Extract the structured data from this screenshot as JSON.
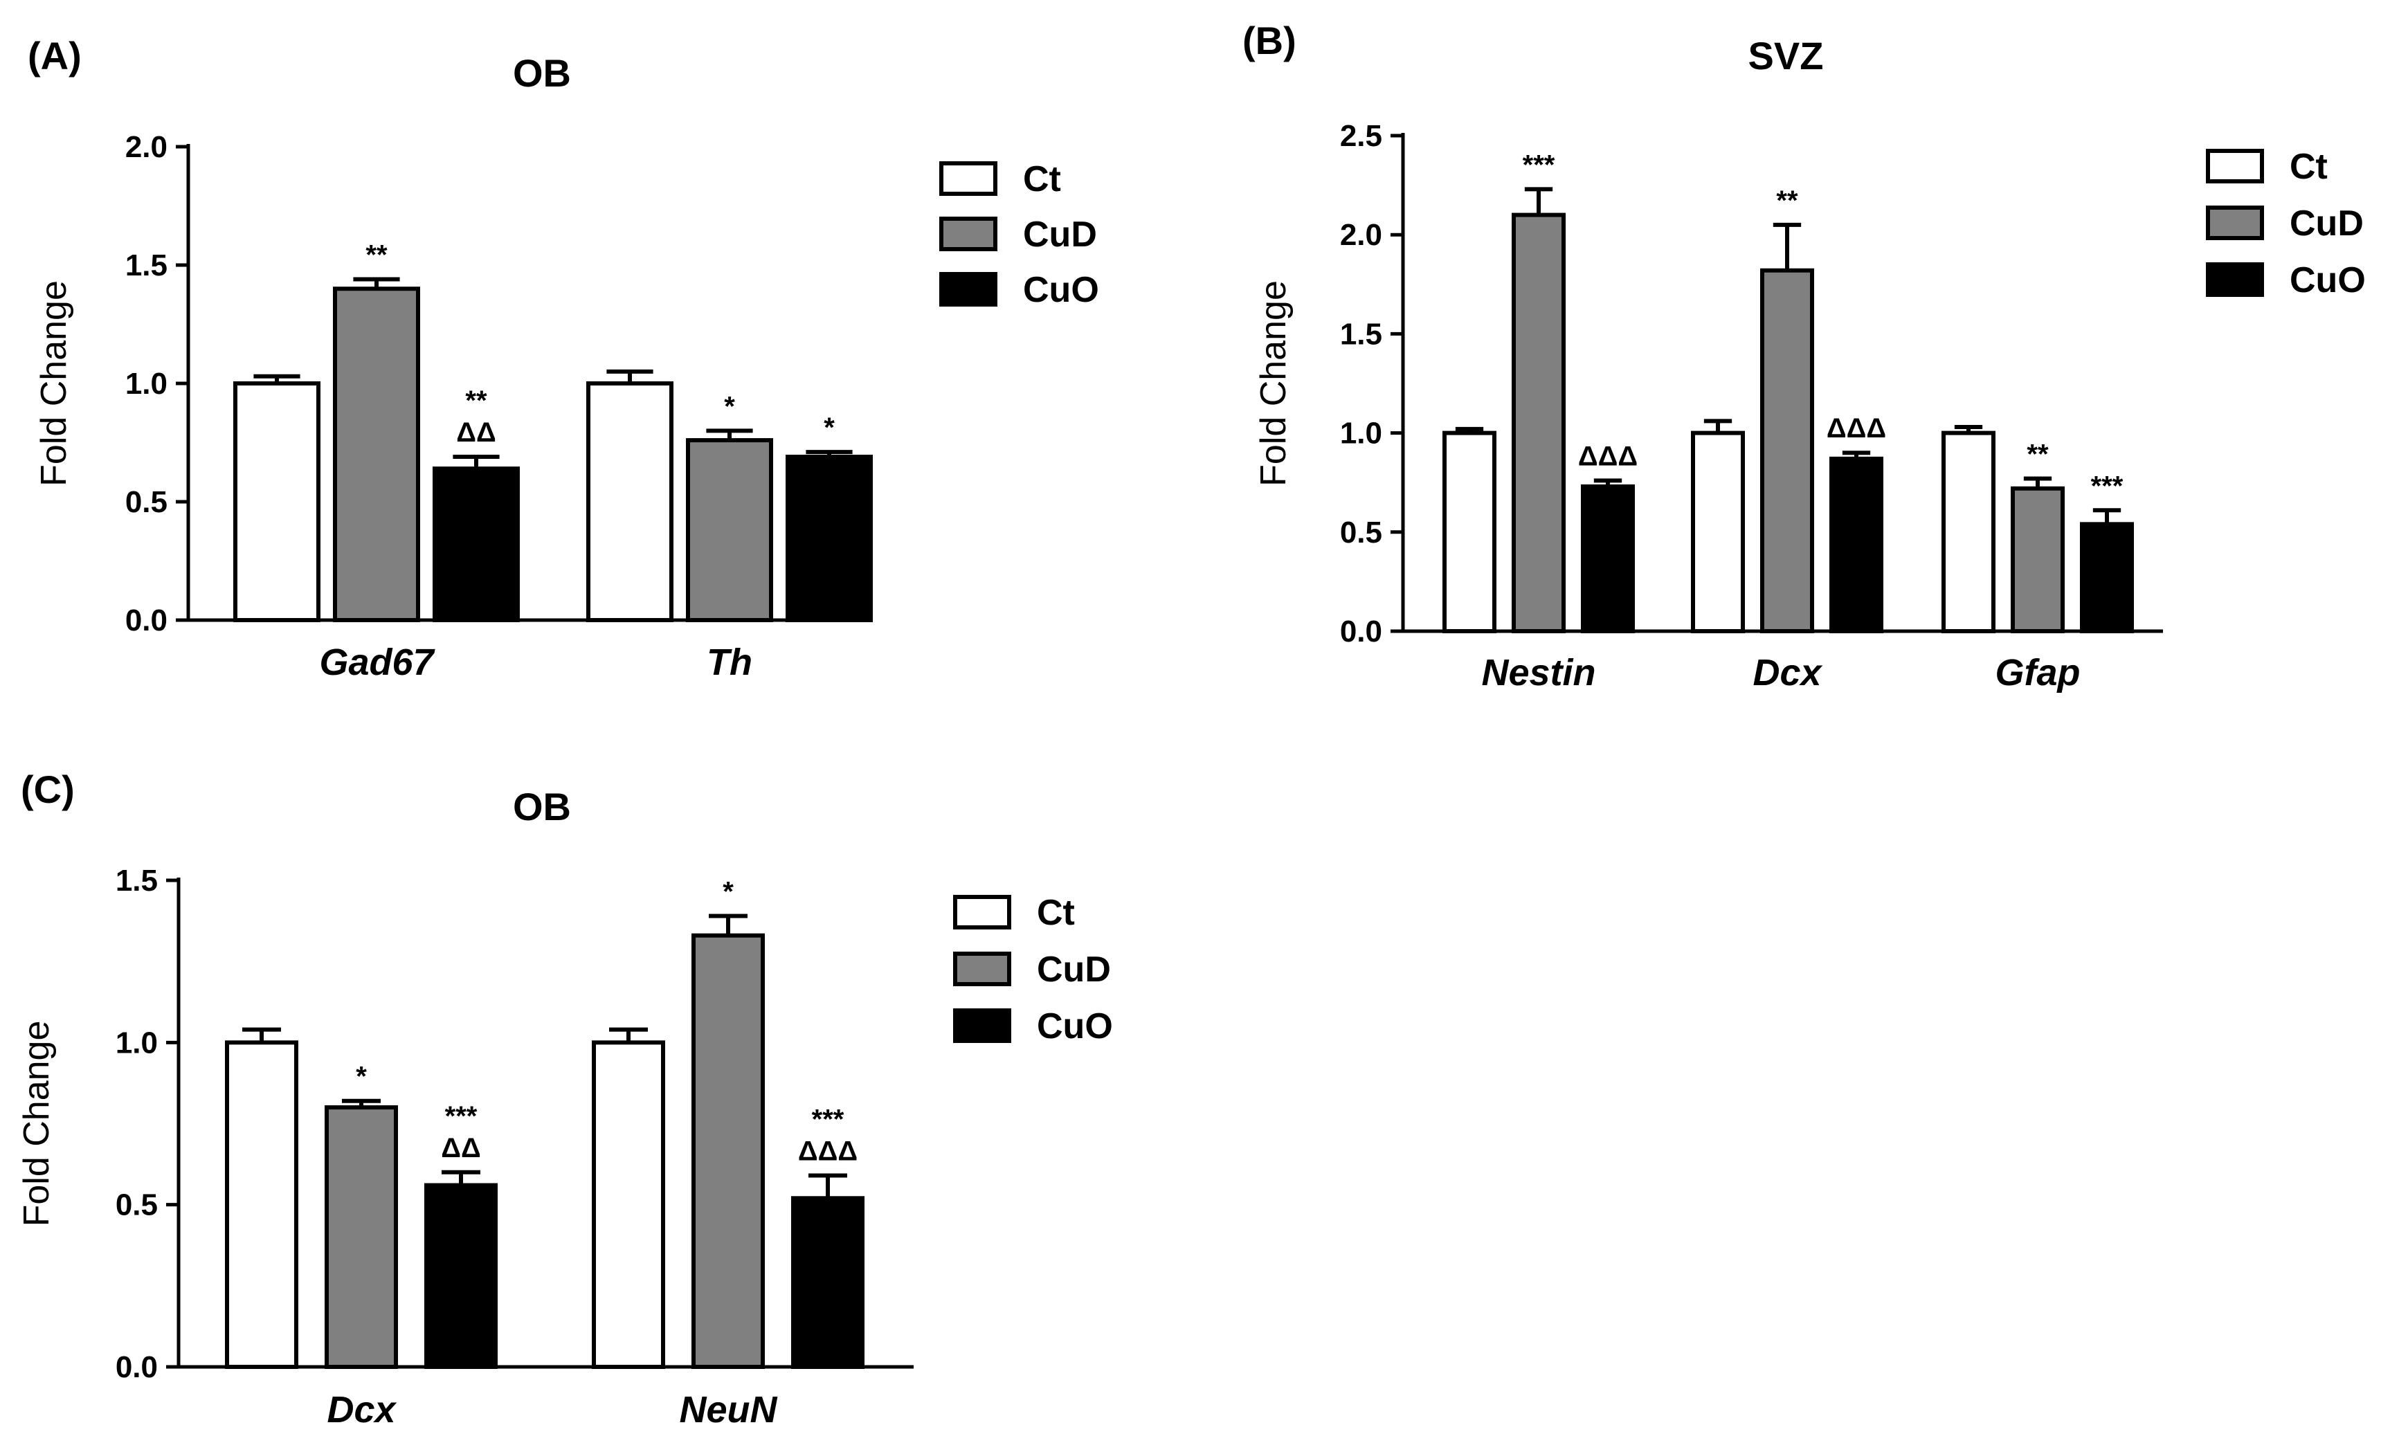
{
  "chart_data": [
    {
      "type": "bar",
      "panel": "(A)",
      "title": "OB",
      "ylabel": "Fold Change",
      "xlabel": "",
      "ylim": [
        0,
        2.0
      ],
      "yticks": [
        "0.0",
        "0.5",
        "1.0",
        "1.5",
        "2.0"
      ],
      "categories": [
        "Gad67",
        "Th"
      ],
      "series": [
        {
          "name": "Ct",
          "color": "#ffffff",
          "values": [
            1.0,
            1.0
          ],
          "errors": [
            0.03,
            0.05
          ],
          "annotations": [
            "",
            ""
          ]
        },
        {
          "name": "CuD",
          "color": "#808080",
          "values": [
            1.4,
            0.76
          ],
          "errors": [
            0.04,
            0.04
          ],
          "annotations": [
            "**",
            "*"
          ]
        },
        {
          "name": "CuO",
          "color": "#000000",
          "values": [
            0.64,
            0.69
          ],
          "errors": [
            0.05,
            0.02
          ],
          "annotations": [
            "**\nΔΔ",
            "*"
          ]
        }
      ]
    },
    {
      "type": "bar",
      "panel": "(B)",
      "title": "SVZ",
      "ylabel": "Fold Change",
      "xlabel": "",
      "ylim": [
        0,
        2.5
      ],
      "yticks": [
        "0.0",
        "0.5",
        "1.0",
        "1.5",
        "2.0",
        "2.5"
      ],
      "categories": [
        "Nestin",
        "Dcx",
        "Gfap"
      ],
      "series": [
        {
          "name": "Ct",
          "color": "#ffffff",
          "values": [
            1.0,
            1.0,
            1.0
          ],
          "errors": [
            0.02,
            0.06,
            0.03
          ],
          "annotations": [
            "",
            "",
            ""
          ]
        },
        {
          "name": "CuD",
          "color": "#808080",
          "values": [
            2.1,
            1.82,
            0.72
          ],
          "errors": [
            0.13,
            0.23,
            0.05
          ],
          "annotations": [
            "***",
            "**",
            "**"
          ]
        },
        {
          "name": "CuO",
          "color": "#000000",
          "values": [
            0.73,
            0.87,
            0.54
          ],
          "errors": [
            0.03,
            0.03,
            0.07
          ],
          "annotations": [
            "ΔΔΔ",
            "ΔΔΔ",
            "***"
          ]
        }
      ]
    },
    {
      "type": "bar",
      "panel": "(C)",
      "title": "OB",
      "ylabel": "Fold Change",
      "xlabel": "",
      "ylim": [
        0,
        1.5
      ],
      "yticks": [
        "0.0",
        "0.5",
        "1.0",
        "1.5"
      ],
      "categories": [
        "Dcx",
        "NeuN"
      ],
      "series": [
        {
          "name": "Ct",
          "color": "#ffffff",
          "values": [
            1.0,
            1.0
          ],
          "errors": [
            0.04,
            0.04
          ],
          "annotations": [
            "",
            ""
          ]
        },
        {
          "name": "CuD",
          "color": "#808080",
          "values": [
            0.8,
            1.33
          ],
          "errors": [
            0.02,
            0.06
          ],
          "annotations": [
            "*",
            "*"
          ]
        },
        {
          "name": "CuO",
          "color": "#000000",
          "values": [
            0.56,
            0.52
          ],
          "errors": [
            0.04,
            0.07
          ],
          "annotations": [
            "***\nΔΔ",
            "***\nΔΔΔ"
          ]
        }
      ]
    }
  ]
}
